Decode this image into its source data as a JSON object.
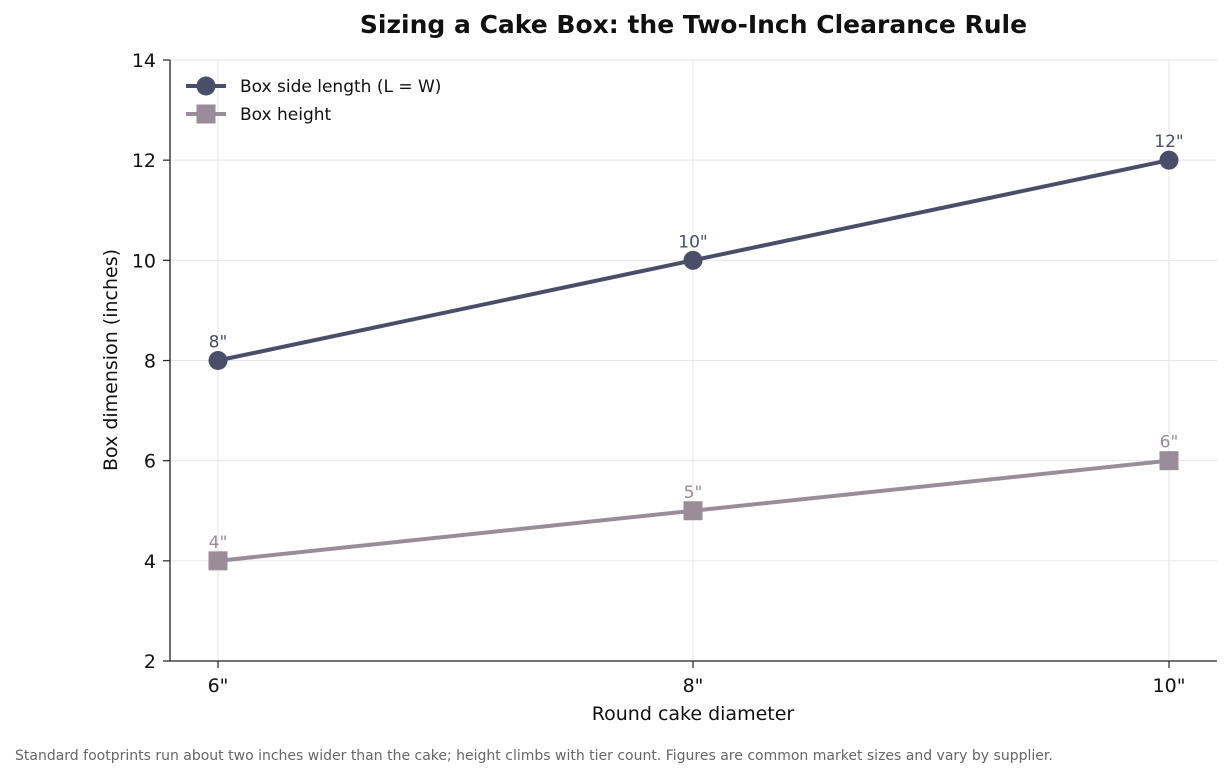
{
  "chart_data": {
    "type": "line",
    "title": "Sizing a Cake Box: the Two-Inch Clearance Rule",
    "xlabel": "Round cake diameter",
    "ylabel": "Box dimension (inches)",
    "categories": [
      "6\"",
      "8\"",
      "10\""
    ],
    "ylim": [
      2,
      14
    ],
    "yticks": [
      2,
      4,
      6,
      8,
      10,
      12,
      14
    ],
    "grid": true,
    "legend_position": "top-left",
    "series": [
      {
        "name": "Box side length (L = W)",
        "values": [
          8,
          10,
          12
        ],
        "labels": [
          "8\"",
          "10\"",
          "12\""
        ],
        "color": "#4a4e69",
        "marker": "circle"
      },
      {
        "name": "Box height",
        "values": [
          4,
          5,
          6
        ],
        "labels": [
          "4\"",
          "5\"",
          "6\""
        ],
        "color": "#9a8c98",
        "marker": "square"
      }
    ]
  },
  "caption": "Standard footprints run about two inches wider than the cake; height climbs with tier count. Figures are common market sizes and vary by supplier."
}
